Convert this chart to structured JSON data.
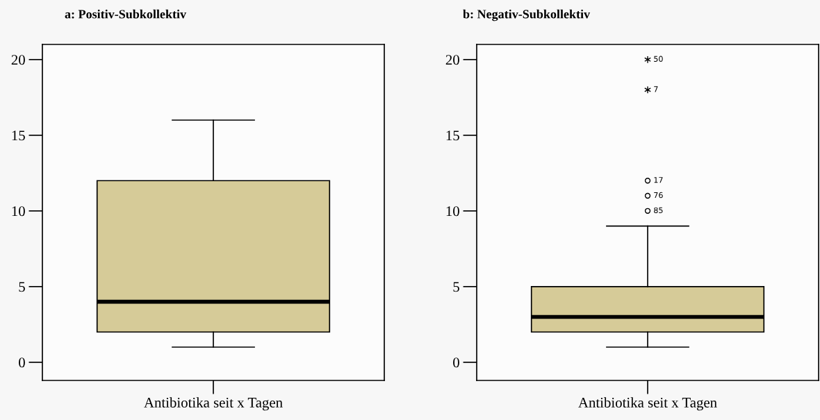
{
  "chart_data": [
    {
      "type": "box",
      "title": "a: Positiv-Subkollektiv",
      "categories": [
        "Antibiotika seit x Tagen"
      ],
      "color": "#d6cb98",
      "boxes": [
        {
          "low": 1,
          "q1": 2,
          "median": 4,
          "q3": 12,
          "high": 16
        }
      ],
      "ylim": [
        -1.2,
        21
      ],
      "yticks": [
        0,
        5,
        10,
        15,
        20
      ],
      "grid": false,
      "legend": false
    },
    {
      "type": "box",
      "title": "b: Negativ-Subkollektiv",
      "categories": [
        "Antibiotika seit x Tagen"
      ],
      "color": "#d6cb98",
      "boxes": [
        {
          "low": 1,
          "q1": 2,
          "median": 3,
          "q3": 5,
          "high": 9,
          "outliers": [
            20,
            18,
            12,
            11,
            10
          ]
        }
      ],
      "annotations": [
        "50",
        "7",
        "17",
        "76",
        "85"
      ],
      "ylim": [
        -1.2,
        21
      ],
      "yticks": [
        0,
        5,
        10,
        15,
        20
      ],
      "grid": false,
      "legend": false
    }
  ]
}
